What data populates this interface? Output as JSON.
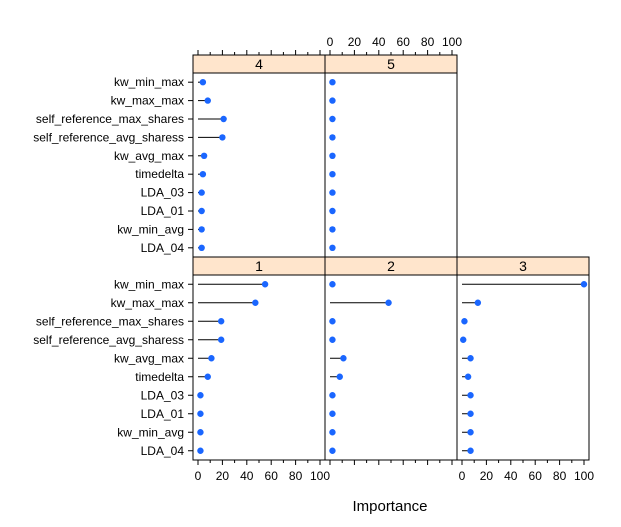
{
  "chart_data": {
    "type": "dot-plot",
    "xlabel": "Importance",
    "xlim": [
      0,
      100
    ],
    "x_ticks": [
      0,
      20,
      40,
      60,
      80,
      100
    ],
    "categories": [
      "kw_min_max",
      "kw_max_max",
      "self_reference_max_shares",
      "self_reference_avg_sharess",
      "kw_avg_max",
      "timedelta",
      "LDA_03",
      "LDA_01",
      "kw_min_avg",
      "LDA_04"
    ],
    "panels": [
      {
        "name": "4",
        "values": [
          4,
          8,
          21,
          20,
          5,
          4,
          3,
          3,
          3,
          3
        ]
      },
      {
        "name": "5",
        "values": [
          2,
          2,
          2,
          2,
          2,
          2,
          2,
          2,
          2,
          2
        ]
      },
      {
        "name": "1",
        "values": [
          55,
          47,
          19,
          19,
          11,
          8,
          2,
          2,
          2,
          2
        ]
      },
      {
        "name": "2",
        "values": [
          2,
          48,
          2,
          2,
          11,
          8,
          2,
          2,
          2,
          2
        ]
      },
      {
        "name": "3",
        "values": [
          100,
          13,
          2,
          1,
          7,
          5,
          7,
          7,
          7,
          7
        ]
      }
    ],
    "colors": {
      "point": "#1a66ff",
      "strip": "#ffe5cc",
      "line": "#000000"
    },
    "legend": "none",
    "grid": false
  }
}
